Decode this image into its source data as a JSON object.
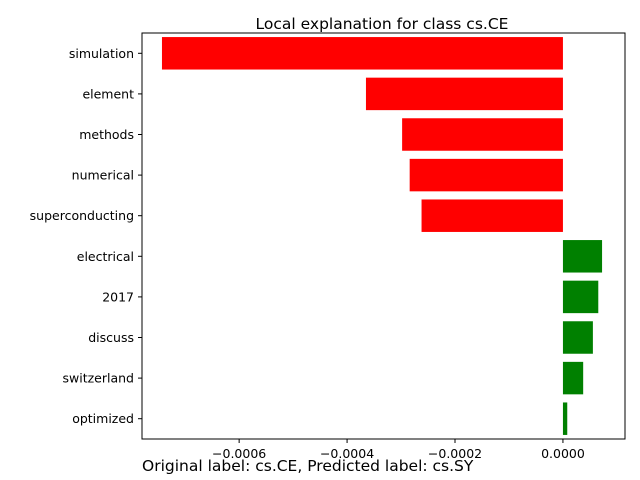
{
  "chart_data": {
    "type": "bar",
    "orientation": "horizontal",
    "title": "Local explanation for class cs.CE",
    "xlabel": "",
    "ylabel": "",
    "categories": [
      "simulation",
      "element",
      "methods",
      "numerical",
      "superconducting",
      "electrical",
      "2017",
      "discuss",
      "switzerland",
      "optimized"
    ],
    "values": [
      -0.000743,
      -0.000365,
      -0.000298,
      -0.000284,
      -0.000262,
      7.25e-05,
      6.55e-05,
      5.55e-05,
      3.75e-05,
      8e-06
    ],
    "xlim": [
      -0.00078,
      0.000115
    ],
    "xticks": [
      -0.0006,
      -0.0004,
      -0.0002,
      0.0
    ],
    "xtick_labels": [
      "−0.0006",
      "−0.0004",
      "−0.0002",
      "0.0000"
    ],
    "colors": {
      "negative": "#ff0000",
      "positive": "#008000"
    },
    "grid": false,
    "legend": "none"
  },
  "caption": "Original label: cs.CE, Predicted label: cs.SY"
}
